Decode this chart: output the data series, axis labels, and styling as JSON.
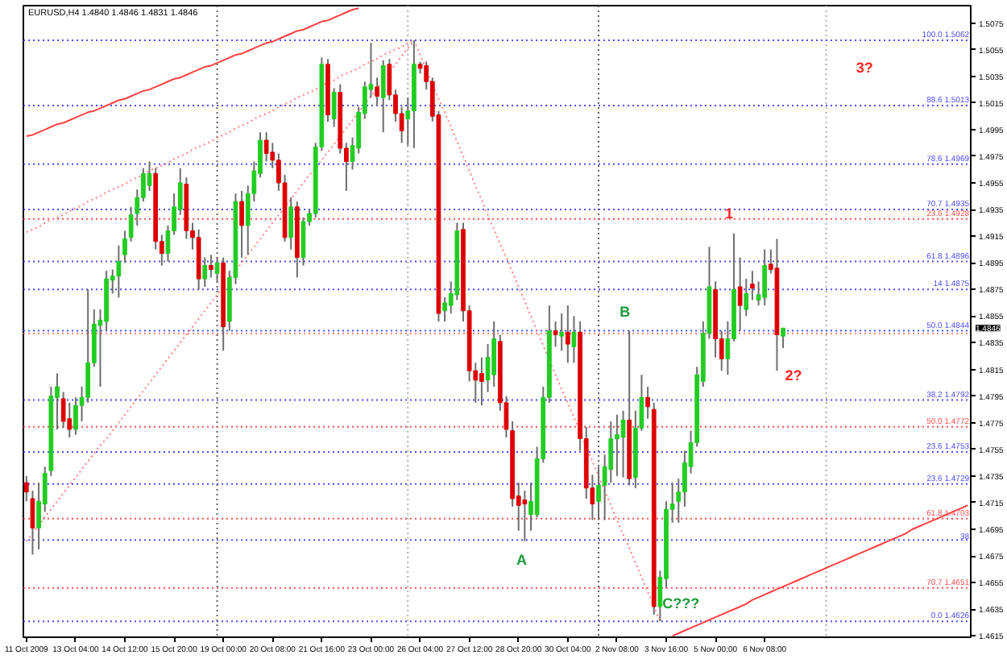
{
  "chart_data": {
    "type": "candlestick",
    "title": "EURUSD,H4 1.4840 1.4846 1.4831 1.4846",
    "categories": [
      "11 Oct 2009",
      null,
      null,
      null,
      null,
      null,
      null,
      null,
      "13 Oct 04:00",
      null,
      null,
      null,
      null,
      null,
      null,
      null,
      "14 Oct 12:00",
      null,
      null,
      null,
      null,
      null,
      null,
      null,
      "15 Oct 20:00",
      null,
      null,
      null,
      null,
      null,
      null,
      null,
      "19 Oct 00:00",
      null,
      null,
      null,
      null,
      null,
      null,
      null,
      "20 Oct 08:00",
      null,
      null,
      null,
      null,
      null,
      null,
      null,
      "21 Oct 16:00",
      null,
      null,
      null,
      null,
      null,
      null,
      null,
      "23 Oct 00:00",
      null,
      null,
      null,
      null,
      null,
      null,
      null,
      "26 Oct 04:00",
      null,
      null,
      null,
      null,
      null,
      null,
      null,
      "27 Oct 12:00",
      null,
      null,
      null,
      null,
      null,
      null,
      null,
      "28 Oct 20:00",
      null,
      null,
      null,
      null,
      null,
      null,
      null,
      "30 Oct 04:00",
      null,
      null,
      null,
      null,
      null,
      null,
      null,
      "2 Nov 08:00",
      null,
      null,
      null,
      null,
      null,
      null,
      null,
      "3 Nov 16:00",
      null,
      null,
      null,
      null,
      null,
      null,
      null,
      "5 Nov 00:00",
      null,
      null,
      null,
      null,
      null,
      null,
      null,
      "6 Nov 08:00",
      null,
      null,
      null,
      null,
      null,
      null,
      null,
      null,
      null,
      null,
      null,
      null,
      null,
      null,
      null,
      null,
      null,
      null,
      null,
      null,
      null,
      null,
      null,
      null,
      null,
      null,
      null,
      null,
      null,
      null,
      null,
      null,
      null
    ],
    "ohlc": [
      [
        1.473,
        1.4735,
        1.4716,
        1.4723
      ],
      [
        1.4718,
        1.4724,
        1.4676,
        1.4696
      ],
      [
        1.4696,
        1.473,
        1.468,
        1.4716
      ],
      [
        1.4714,
        1.4742,
        1.4708,
        1.4737
      ],
      [
        1.4739,
        1.4802,
        1.4735,
        1.4795
      ],
      [
        1.4794,
        1.4812,
        1.477,
        1.4802
      ],
      [
        1.4793,
        1.4798,
        1.4771,
        1.4776
      ],
      [
        1.4778,
        1.479,
        1.4764,
        1.477
      ],
      [
        1.477,
        1.4794,
        1.4766,
        1.4788
      ],
      [
        1.4788,
        1.4802,
        1.4776,
        1.4794
      ],
      [
        1.4794,
        1.4875,
        1.479,
        1.482
      ],
      [
        1.482,
        1.486,
        1.4817,
        1.4849
      ],
      [
        1.4848,
        1.486,
        1.4802,
        1.4852
      ],
      [
        1.4851,
        1.4889,
        1.4844,
        1.4883
      ],
      [
        1.4882,
        1.489,
        1.4872,
        1.4885
      ],
      [
        1.4885,
        1.4908,
        1.4869,
        1.4896
      ],
      [
        1.4901,
        1.4919,
        1.4895,
        1.4913
      ],
      [
        1.4914,
        1.4937,
        1.4911,
        1.4931
      ],
      [
        1.4932,
        1.495,
        1.4923,
        1.4944
      ],
      [
        1.4944,
        1.4966,
        1.4941,
        1.4962
      ],
      [
        1.4953,
        1.4971,
        1.4949,
        1.4962
      ],
      [
        1.4962,
        1.4966,
        1.4905,
        1.4911
      ],
      [
        1.4911,
        1.4916,
        1.4893,
        1.4902
      ],
      [
        1.4902,
        1.4923,
        1.4896,
        1.4919
      ],
      [
        1.4919,
        1.4947,
        1.4916,
        1.4937
      ],
      [
        1.4935,
        1.4966,
        1.4931,
        1.4955
      ],
      [
        1.4954,
        1.4959,
        1.4913,
        1.4919
      ],
      [
        1.4919,
        1.4925,
        1.4905,
        1.4914
      ],
      [
        1.4914,
        1.492,
        1.4875,
        1.4883
      ],
      [
        1.4883,
        1.4899,
        1.4877,
        1.4893
      ],
      [
        1.4893,
        1.4901,
        1.4884,
        1.489
      ],
      [
        1.4887,
        1.4899,
        1.4881,
        1.4895
      ],
      [
        1.4895,
        1.4899,
        1.4829,
        1.4847
      ],
      [
        1.4851,
        1.4889,
        1.4844,
        1.4884
      ],
      [
        1.4884,
        1.4947,
        1.4879,
        1.4941
      ],
      [
        1.4941,
        1.4949,
        1.4899,
        1.4923
      ],
      [
        1.4923,
        1.4953,
        1.4901,
        1.4947
      ],
      [
        1.4947,
        1.4971,
        1.4941,
        1.4964
      ],
      [
        1.4962,
        1.4993,
        1.4959,
        1.4987
      ],
      [
        1.4987,
        1.4993,
        1.4971,
        1.4977
      ],
      [
        1.4978,
        1.4985,
        1.4966,
        1.4972
      ],
      [
        1.4972,
        1.4977,
        1.4949,
        1.4955
      ],
      [
        1.4955,
        1.4961,
        1.4911,
        1.4914
      ],
      [
        1.4914,
        1.4944,
        1.4905,
        1.4937
      ],
      [
        1.4937,
        1.4941,
        1.4884,
        1.4899
      ],
      [
        1.4899,
        1.4929,
        1.4893,
        1.4926
      ],
      [
        1.4926,
        1.4935,
        1.4923,
        1.4932
      ],
      [
        1.4932,
        1.4985,
        1.4929,
        1.4982
      ],
      [
        1.4982,
        1.5049,
        1.4979,
        1.5044
      ],
      [
        1.5044,
        1.5048,
        1.5001,
        1.5006
      ],
      [
        1.5003,
        1.5026,
        1.4997,
        1.5023
      ],
      [
        1.5023,
        1.5029,
        1.4977,
        1.4981
      ],
      [
        1.4981,
        1.4985,
        1.4949,
        1.4971
      ],
      [
        1.4971,
        1.4989,
        1.4965,
        1.4983
      ],
      [
        1.4981,
        1.5012,
        1.4977,
        1.5008
      ],
      [
        1.5007,
        1.5031,
        1.5003,
        1.5027
      ],
      [
        1.5025,
        1.506,
        1.5019,
        1.5029
      ],
      [
        1.5027,
        1.5034,
        1.5013,
        1.502
      ],
      [
        1.5019,
        1.5047,
        1.4993,
        1.5043
      ],
      [
        1.5044,
        1.5048,
        1.5017,
        1.5021
      ],
      [
        1.5021,
        1.5025,
        1.5001,
        1.5007
      ],
      [
        1.5007,
        1.5012,
        1.4985,
        1.4994
      ],
      [
        1.5003,
        1.5019,
        1.4983,
        1.5009
      ],
      [
        1.5009,
        1.5062,
        1.4981,
        1.5044
      ],
      [
        1.5044,
        1.5046,
        1.5037,
        1.5041
      ],
      [
        1.5043,
        1.5046,
        1.5025,
        1.5031
      ],
      [
        1.5031,
        1.5034,
        1.5001,
        1.5005
      ],
      [
        1.5006,
        1.5009,
        1.4851,
        1.4857
      ],
      [
        1.4859,
        1.4869,
        1.4851,
        1.4865
      ],
      [
        1.4863,
        1.4881,
        1.4857,
        1.4872
      ],
      [
        1.4871,
        1.4925,
        1.4867,
        1.4919
      ],
      [
        1.492,
        1.4925,
        1.4851,
        1.4859
      ],
      [
        1.4859,
        1.4863,
        1.4806,
        1.4814
      ],
      [
        1.4814,
        1.482,
        1.479,
        1.4807
      ],
      [
        1.4812,
        1.4824,
        1.4788,
        1.4806
      ],
      [
        1.4807,
        1.4834,
        1.4798,
        1.4824
      ],
      [
        1.4811,
        1.4851,
        1.4802,
        1.4838
      ],
      [
        1.4836,
        1.4841,
        1.4784,
        1.479
      ],
      [
        1.479,
        1.4795,
        1.4764,
        1.477
      ],
      [
        1.4769,
        1.4776,
        1.4712,
        1.4718
      ],
      [
        1.472,
        1.473,
        1.4694,
        1.4713
      ],
      [
        1.4717,
        1.4724,
        1.4686,
        1.4714
      ],
      [
        1.4706,
        1.473,
        1.4694,
        1.4716
      ],
      [
        1.4706,
        1.4757,
        1.4704,
        1.4748
      ],
      [
        1.4748,
        1.4802,
        1.4745,
        1.4794
      ],
      [
        1.4794,
        1.4863,
        1.479,
        1.4844
      ],
      [
        1.4844,
        1.4851,
        1.4832,
        1.4841
      ],
      [
        1.484,
        1.4857,
        1.4829,
        1.4843
      ],
      [
        1.4843,
        1.4863,
        1.482,
        1.4834
      ],
      [
        1.4832,
        1.4855,
        1.482,
        1.4843
      ],
      [
        1.4843,
        1.4851,
        1.4754,
        1.4763
      ],
      [
        1.4763,
        1.4772,
        1.4718,
        1.4726
      ],
      [
        1.4726,
        1.4736,
        1.4702,
        1.4714
      ],
      [
        1.4716,
        1.4742,
        1.4702,
        1.4728
      ],
      [
        1.4728,
        1.4751,
        1.4702,
        1.4742
      ],
      [
        1.474,
        1.4776,
        1.473,
        1.4763
      ],
      [
        1.4763,
        1.4781,
        1.4735,
        1.4766
      ],
      [
        1.4764,
        1.4784,
        1.4734,
        1.4777
      ],
      [
        1.4777,
        1.4844,
        1.4728,
        1.4733
      ],
      [
        1.4734,
        1.4784,
        1.4726,
        1.4771
      ],
      [
        1.4771,
        1.4811,
        1.4769,
        1.4794
      ],
      [
        1.4794,
        1.4802,
        1.4778,
        1.4787
      ],
      [
        1.4785,
        1.479,
        1.4631,
        1.4637
      ],
      [
        1.4637,
        1.4664,
        1.4626,
        1.4659
      ],
      [
        1.4658,
        1.4716,
        1.4651,
        1.471
      ],
      [
        1.471,
        1.473,
        1.47,
        1.4714
      ],
      [
        1.4716,
        1.4733,
        1.47,
        1.4723
      ],
      [
        1.4723,
        1.4754,
        1.4712,
        1.4745
      ],
      [
        1.4742,
        1.4769,
        1.4737,
        1.476
      ],
      [
        1.476,
        1.4817,
        1.4757,
        1.4811
      ],
      [
        1.4806,
        1.4851,
        1.4802,
        1.4842
      ],
      [
        1.4842,
        1.4907,
        1.4838,
        1.4877
      ],
      [
        1.4875,
        1.4881,
        1.4824,
        1.4838
      ],
      [
        1.4838,
        1.4844,
        1.4814,
        1.4823
      ],
      [
        1.4823,
        1.4851,
        1.4811,
        1.4838
      ],
      [
        1.4838,
        1.4917,
        1.4836,
        1.4875
      ],
      [
        1.4877,
        1.4899,
        1.4844,
        1.4863
      ],
      [
        1.486,
        1.4883,
        1.4855,
        1.4872
      ],
      [
        1.4879,
        1.4889,
        1.4867,
        1.4876
      ],
      [
        1.4867,
        1.4881,
        1.4863,
        1.4871
      ],
      [
        1.4869,
        1.4905,
        1.4863,
        1.4893
      ],
      [
        1.4894,
        1.4905,
        1.4887,
        1.489
      ],
      [
        1.4891,
        1.4913,
        1.4814,
        1.4841
      ],
      [
        1.484,
        1.4846,
        1.4831,
        1.4846
      ],
      null,
      null,
      null,
      null,
      null,
      null,
      null,
      null,
      null,
      null,
      null,
      null,
      null,
      null,
      null,
      null,
      null,
      null,
      null,
      null,
      null,
      null,
      null,
      null,
      null,
      null,
      null,
      null,
      null,
      null
    ],
    "colors": [
      "#dd0000",
      "#dd0000",
      "#22cc22",
      "#22cc22",
      "#22cc22",
      "#22cc22",
      "#dd0000",
      "#dd0000",
      "#22cc22",
      "#22cc22",
      "#22cc22",
      "#22cc22",
      "#22cc22",
      "#22cc22",
      "#22cc22",
      "#22cc22",
      "#22cc22",
      "#22cc22",
      "#22cc22",
      "#22cc22",
      "#22cc22",
      "#dd0000",
      "#dd0000",
      "#22cc22",
      "#22cc22",
      "#22cc22",
      "#dd0000",
      "#dd0000",
      "#dd0000",
      "#22cc22",
      "#dd0000",
      "#22cc22",
      "#dd0000",
      "#22cc22",
      "#22cc22",
      "#dd0000",
      "#22cc22",
      "#22cc22",
      "#22cc22",
      "#dd0000",
      "#dd0000",
      "#dd0000",
      "#dd0000",
      "#22cc22",
      "#dd0000",
      "#22cc22",
      "#22cc22",
      "#22cc22",
      "#22cc22",
      "#dd0000",
      "#22cc22",
      "#dd0000",
      "#dd0000",
      "#22cc22",
      "#22cc22",
      "#22cc22",
      "#22cc22",
      "#dd0000",
      "#22cc22",
      "#dd0000",
      "#dd0000",
      "#dd0000",
      "#22cc22",
      "#22cc22",
      "#dd0000",
      "#dd0000",
      "#dd0000",
      "#dd0000",
      "#22cc22",
      "#22cc22",
      "#22cc22",
      "#dd0000",
      "#dd0000",
      "#dd0000",
      "#dd0000",
      "#22cc22",
      "#22cc22",
      "#dd0000",
      "#dd0000",
      "#dd0000",
      "#dd0000",
      "#dd0000",
      "#22cc22",
      "#22cc22",
      "#22cc22",
      "#22cc22",
      "#dd0000",
      "#22cc22",
      "#dd0000",
      "#22cc22",
      "#dd0000",
      "#dd0000",
      "#dd0000",
      "#22cc22",
      "#22cc22",
      "#22cc22",
      "#22cc22",
      "#22cc22",
      "#dd0000",
      "#22cc22",
      "#22cc22",
      "#dd0000",
      "#dd0000",
      "#22cc22",
      "#22cc22",
      "#22cc22",
      "#22cc22",
      "#22cc22",
      "#22cc22",
      "#22cc22",
      "#22cc22",
      "#22cc22",
      "#dd0000",
      "#dd0000",
      "#22cc22",
      "#22cc22",
      "#dd0000",
      "#22cc22",
      "#dd0000",
      "#22cc22",
      "#22cc22",
      "#dd0000",
      "#dd0000",
      "#22cc22",
      null,
      null,
      null,
      null,
      null,
      null,
      null,
      null,
      null,
      null,
      null,
      null,
      null,
      null,
      null,
      null,
      null,
      null,
      null,
      null,
      null,
      null,
      null,
      null,
      null,
      null,
      null,
      null,
      null,
      null
    ],
    "series": [
      {
        "type": "line",
        "color": "#ff4040",
        "line_style": "solid",
        "values": [
          1.499,
          1.4991,
          1.4993,
          1.4995,
          1.4997,
          1.4999,
          1.5,
          1.5002,
          1.5004,
          1.5006,
          1.5008,
          1.5009,
          1.5011,
          1.5013,
          1.5015,
          1.5017,
          1.5018,
          1.502,
          1.5022,
          1.5024,
          1.5025,
          1.5027,
          1.5029,
          1.5031,
          1.5033,
          1.5034,
          1.5036,
          1.5038,
          1.504,
          1.5042,
          1.5043,
          1.5045,
          1.5047,
          1.5049,
          1.5051,
          1.5052,
          1.5054,
          1.5056,
          1.5058,
          1.506,
          1.5061,
          1.5063,
          1.5065,
          1.5067,
          1.5069,
          1.507,
          1.5072,
          1.5074,
          1.5076,
          1.5077,
          1.5079,
          1.5081,
          1.5083,
          1.5085,
          1.5086,
          null,
          null,
          null,
          null,
          null,
          null,
          null,
          null,
          null,
          null,
          null,
          null,
          null,
          null,
          null,
          null,
          null,
          null,
          null,
          null,
          null,
          null,
          null,
          null,
          null,
          null,
          null,
          null,
          null,
          null,
          null,
          null,
          null,
          null,
          null,
          null,
          null,
          null,
          null,
          null,
          null,
          null,
          null,
          null,
          null,
          null,
          null,
          null,
          null,
          null,
          null,
          null,
          null,
          null,
          null,
          null,
          null,
          null,
          null,
          null,
          null,
          null,
          null,
          null,
          null,
          null,
          null,
          null,
          null,
          null,
          null,
          null,
          null,
          null,
          null,
          null,
          null,
          null,
          null,
          null,
          null,
          null,
          null,
          null,
          null,
          null,
          null,
          null,
          null,
          null,
          null,
          null,
          null,
          null,
          null,
          null,
          null,
          null,
          null
        ]
      },
      {
        "type": "line",
        "color": "#ff8080",
        "line_style": "dotted",
        "values": [
          1.4918,
          1.492,
          1.4922,
          1.4925,
          1.4927,
          1.4929,
          1.4931,
          1.4934,
          1.4936,
          1.4938,
          1.4941,
          1.4943,
          1.4945,
          1.4948,
          1.495,
          1.4952,
          1.4954,
          1.4957,
          1.4959,
          1.4961,
          1.4964,
          1.4966,
          1.4968,
          1.497,
          1.4973,
          1.4975,
          1.4977,
          1.498,
          1.4982,
          1.4984,
          1.4986,
          1.4989,
          1.4991,
          1.4993,
          1.4996,
          1.4998,
          1.5,
          1.5003,
          1.5005,
          1.5007,
          1.5009,
          1.5012,
          1.5014,
          1.5016,
          1.5019,
          1.5021,
          1.5023,
          1.5025,
          1.5028,
          1.503,
          1.5032,
          1.5035,
          1.5037,
          1.5039,
          1.5041,
          1.5044,
          1.5046,
          1.5048,
          1.5051,
          1.5053,
          1.5055,
          1.5057,
          1.506,
          1.5062,
          null,
          null,
          null,
          null,
          null,
          null,
          null,
          null,
          null,
          null,
          null,
          null,
          null,
          null,
          null,
          null,
          null,
          null,
          null,
          null,
          null,
          null,
          null,
          null,
          null,
          null,
          null,
          null,
          null,
          null,
          null,
          null,
          null,
          null,
          null,
          null,
          null,
          null,
          null,
          null,
          null,
          null,
          null,
          null,
          null,
          null,
          null,
          null,
          null,
          null,
          null,
          null,
          null,
          null,
          null,
          null,
          null,
          null,
          null,
          null,
          null,
          null,
          null,
          null,
          null,
          null,
          null,
          null,
          null,
          null,
          null,
          null,
          null,
          null,
          null,
          null,
          null,
          null,
          null,
          null,
          null,
          null,
          null,
          null,
          null,
          null,
          null,
          null,
          null,
          null
        ]
      },
      {
        "type": "line",
        "color": "#ff8080",
        "line_style": "dotted",
        "values": [
          1.4686,
          1.4692,
          1.4698,
          1.4704,
          1.471,
          1.4716,
          1.4722,
          1.4728,
          1.4734,
          1.474,
          1.4746,
          1.4752,
          1.4758,
          1.4763,
          1.4769,
          1.4775,
          1.4781,
          1.4787,
          1.4793,
          1.4799,
          1.4805,
          1.4811,
          1.4817,
          1.4823,
          1.4829,
          1.4835,
          1.4841,
          1.4847,
          1.4853,
          1.4859,
          1.4865,
          1.4871,
          1.4877,
          1.4883,
          1.4889,
          1.4895,
          1.4901,
          1.4907,
          1.4913,
          1.4919,
          1.4925,
          1.4931,
          1.4937,
          1.4943,
          1.4949,
          1.4955,
          1.4961,
          1.4966,
          1.4972,
          1.4978,
          1.4984,
          1.499,
          1.4996,
          1.5002,
          1.5008,
          1.5014,
          1.502,
          1.5026,
          1.5032,
          1.5038,
          1.5044,
          1.505,
          1.5056,
          1.5062,
          null,
          null,
          null,
          null,
          null,
          null,
          null,
          null,
          null,
          null,
          null,
          null,
          null,
          null,
          null,
          null,
          null,
          null,
          null,
          null,
          null,
          null,
          null,
          null,
          null,
          null,
          null,
          null,
          null,
          null,
          null,
          null,
          null,
          null,
          null,
          null,
          null,
          null,
          null,
          null,
          null,
          null,
          null,
          null,
          null,
          null,
          null,
          null,
          null,
          null,
          null,
          null,
          null,
          null,
          null,
          null,
          null,
          null,
          null,
          null,
          null,
          null,
          null,
          null,
          null,
          null,
          null,
          null,
          null,
          null,
          null,
          null,
          null,
          null,
          null,
          null,
          null,
          null,
          null,
          null,
          null,
          null,
          null,
          null,
          null,
          null,
          null,
          null,
          null,
          null
        ]
      },
      {
        "type": "line",
        "color": "#ff8080",
        "line_style": "dotted",
        "values": [
          null,
          null,
          null,
          null,
          null,
          null,
          null,
          null,
          null,
          null,
          null,
          null,
          null,
          null,
          null,
          null,
          null,
          null,
          null,
          null,
          null,
          null,
          null,
          null,
          null,
          null,
          null,
          null,
          null,
          null,
          null,
          null,
          null,
          null,
          null,
          null,
          null,
          null,
          null,
          null,
          null,
          null,
          null,
          null,
          null,
          null,
          null,
          null,
          null,
          null,
          null,
          null,
          null,
          null,
          null,
          null,
          null,
          null,
          null,
          null,
          null,
          null,
          null,
          1.5062,
          1.5051,
          1.504,
          1.5029,
          1.5018,
          1.5008,
          1.4997,
          1.4986,
          1.4975,
          1.4964,
          1.4953,
          1.4942,
          1.4931,
          1.492,
          1.4909,
          1.4899,
          1.4888,
          1.4877,
          1.4866,
          1.4855,
          1.4844,
          1.4833,
          1.4822,
          1.4811,
          1.48,
          1.479,
          1.4779,
          1.4768,
          1.4757,
          1.4746,
          1.4735,
          1.4724,
          1.4713,
          1.4702,
          1.4691,
          1.4681,
          1.467,
          1.4659,
          1.4648,
          1.4637,
          1.4626,
          null,
          null,
          null,
          null,
          null,
          null,
          null,
          null,
          null,
          null,
          null,
          null,
          null,
          null,
          null,
          null,
          null,
          null,
          null,
          null,
          null,
          null,
          null,
          null,
          null,
          null,
          null,
          null,
          null,
          null,
          null,
          null,
          null,
          null,
          null,
          null,
          null,
          null,
          null,
          null,
          null,
          null,
          null,
          null,
          null,
          null,
          null,
          null,
          null,
          null
        ]
      },
      {
        "type": "line",
        "color": "#ff4040",
        "line_style": "solid",
        "values": [
          null,
          null,
          null,
          null,
          null,
          null,
          null,
          null,
          null,
          null,
          null,
          null,
          null,
          null,
          null,
          null,
          null,
          null,
          null,
          null,
          null,
          null,
          null,
          null,
          null,
          null,
          null,
          null,
          null,
          null,
          null,
          null,
          null,
          null,
          null,
          null,
          null,
          null,
          null,
          null,
          null,
          null,
          null,
          null,
          null,
          null,
          null,
          null,
          null,
          null,
          null,
          null,
          null,
          null,
          null,
          null,
          null,
          null,
          null,
          null,
          null,
          null,
          null,
          null,
          null,
          null,
          null,
          null,
          null,
          null,
          null,
          null,
          null,
          null,
          null,
          null,
          null,
          null,
          null,
          null,
          null,
          null,
          null,
          null,
          null,
          null,
          null,
          null,
          null,
          null,
          null,
          null,
          null,
          null,
          null,
          null,
          null,
          null,
          null,
          null,
          null,
          null,
          null,
          null,
          null,
          1.4615,
          1.4617,
          1.4619,
          1.4621,
          1.4623,
          1.4625,
          1.4627,
          1.4629,
          1.4631,
          1.4633,
          1.4635,
          1.4637,
          1.4639,
          1.4642,
          1.4644,
          1.4646,
          1.4648,
          1.465,
          1.4652,
          1.4654,
          1.4656,
          1.4658,
          1.466,
          1.4662,
          1.4664,
          1.4666,
          1.4668,
          1.467,
          1.4672,
          1.4674,
          1.4676,
          1.4678,
          1.468,
          1.4682,
          1.4684,
          1.4686,
          1.4688,
          1.469,
          1.4692,
          1.4695,
          1.4697,
          1.4699,
          1.4701,
          1.4703,
          1.4705,
          1.4707,
          1.4709,
          1.4711,
          1.4713
        ]
      }
    ],
    "ref_lines": [
      {
        "axis": "y",
        "value": 1.5062,
        "label": "100.0 1.5062",
        "color": "#4c4cff",
        "line_style": "dotted"
      },
      {
        "axis": "y",
        "value": 1.5013,
        "label": "88.6 1.5013",
        "color": "#4c4cff",
        "line_style": "dotted"
      },
      {
        "axis": "y",
        "value": 1.4969,
        "label": "78.6 1.4969",
        "color": "#4c4cff",
        "line_style": "dotted"
      },
      {
        "axis": "y",
        "value": 1.4935,
        "label": "70.7 1.4935",
        "color": "#4c4cff",
        "line_style": "dotted"
      },
      {
        "axis": "y",
        "value": 1.4928,
        "label": "23.6 1.4928",
        "color": "#ff5050",
        "line_style": "dotted"
      },
      {
        "axis": "y",
        "value": 1.4896,
        "label": "61.8 1.4896",
        "color": "#4c4cff",
        "line_style": "dotted"
      },
      {
        "axis": "y",
        "value": 1.4875,
        "label": "14 1.4875",
        "color": "#4c4cff",
        "line_style": "dotted"
      },
      {
        "axis": "y",
        "value": 1.4844,
        "label": "50.0 1.4844",
        "color": "#4c4cff",
        "line_style": "dotted"
      },
      {
        "axis": "y",
        "value": 1.4842,
        "color": "#ff8080",
        "line_style": "dotted"
      },
      {
        "axis": "y",
        "value": 1.4792,
        "label": "38.2 1.4792",
        "color": "#4c4cff",
        "line_style": "dotted"
      },
      {
        "axis": "y",
        "value": 1.4772,
        "label": "50.0 1.4772",
        "color": "#ff5050",
        "line_style": "dotted"
      },
      {
        "axis": "y",
        "value": 1.4753,
        "label": "23.6 1.4753",
        "color": "#4c4cff",
        "line_style": "dotted"
      },
      {
        "axis": "y",
        "value": 1.4729,
        "label": "23.6 1.4729",
        "color": "#4c4cff",
        "line_style": "dotted"
      },
      {
        "axis": "y",
        "value": 1.4703,
        "label": "61.8 1.4703",
        "color": "#ff5050",
        "line_style": "dotted"
      },
      {
        "axis": "y",
        "value": 1.4687,
        "color": "#4c4cff",
        "line_style": "dotted"
      },
      {
        "axis": "y",
        "value": 1.4651,
        "label": "70.7 1.4651",
        "color": "#ff5050",
        "line_style": "dotted"
      },
      {
        "axis": "y",
        "value": 1.4626,
        "label": "0.0 1.4626",
        "color": "#4c4cff",
        "line_style": "dotted"
      }
    ],
    "annotations": [
      "1",
      "2?",
      "3?",
      "A",
      "B",
      "C???",
      "38",
      "1.4846"
    ],
    "ylim": [
      1.4614,
      1.5088
    ],
    "yticks": [
      1.4615,
      1.4635,
      1.4655,
      1.4675,
      1.4695,
      1.4715,
      1.4735,
      1.4755,
      1.4775,
      1.4795,
      1.4815,
      1.4835,
      1.4855,
      1.4875,
      1.4895,
      1.4915,
      1.4935,
      1.4955,
      1.4975,
      1.4995,
      1.5015,
      1.5035,
      1.5055,
      1.5075
    ]
  }
}
